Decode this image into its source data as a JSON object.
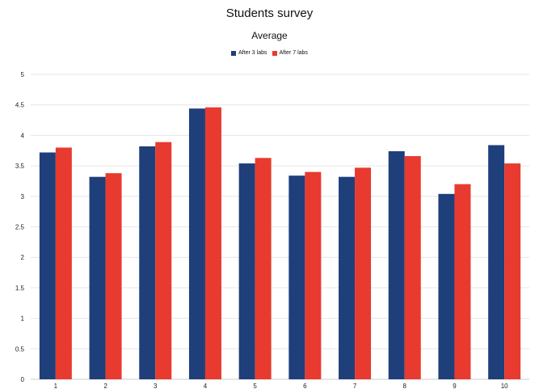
{
  "colors": {
    "series_1": "#1f3f7a",
    "series_2": "#e83a2f",
    "grid": "#e6e6e6"
  },
  "chart_data": {
    "type": "bar",
    "title": "Students survey",
    "subtitle": "Average",
    "xlabel": "",
    "ylabel": "",
    "legend_position": "top",
    "grid": true,
    "ylim": [
      0,
      5
    ],
    "yticks": [
      "0",
      "0.5",
      "1",
      "1.5",
      "2",
      "2.5",
      "3",
      "3.5",
      "4",
      "4.5",
      "5"
    ],
    "categories": [
      "1",
      "2",
      "3",
      "4",
      "5",
      "6",
      "7",
      "8",
      "9",
      "10"
    ],
    "series": [
      {
        "name": "After 3 labs",
        "values": [
          3.72,
          3.32,
          3.82,
          4.44,
          3.54,
          3.34,
          3.32,
          3.74,
          3.04,
          3.84
        ]
      },
      {
        "name": "After 7 labs",
        "values": [
          3.8,
          3.38,
          3.89,
          4.46,
          3.63,
          3.4,
          3.47,
          3.66,
          3.2,
          3.54
        ]
      }
    ]
  }
}
